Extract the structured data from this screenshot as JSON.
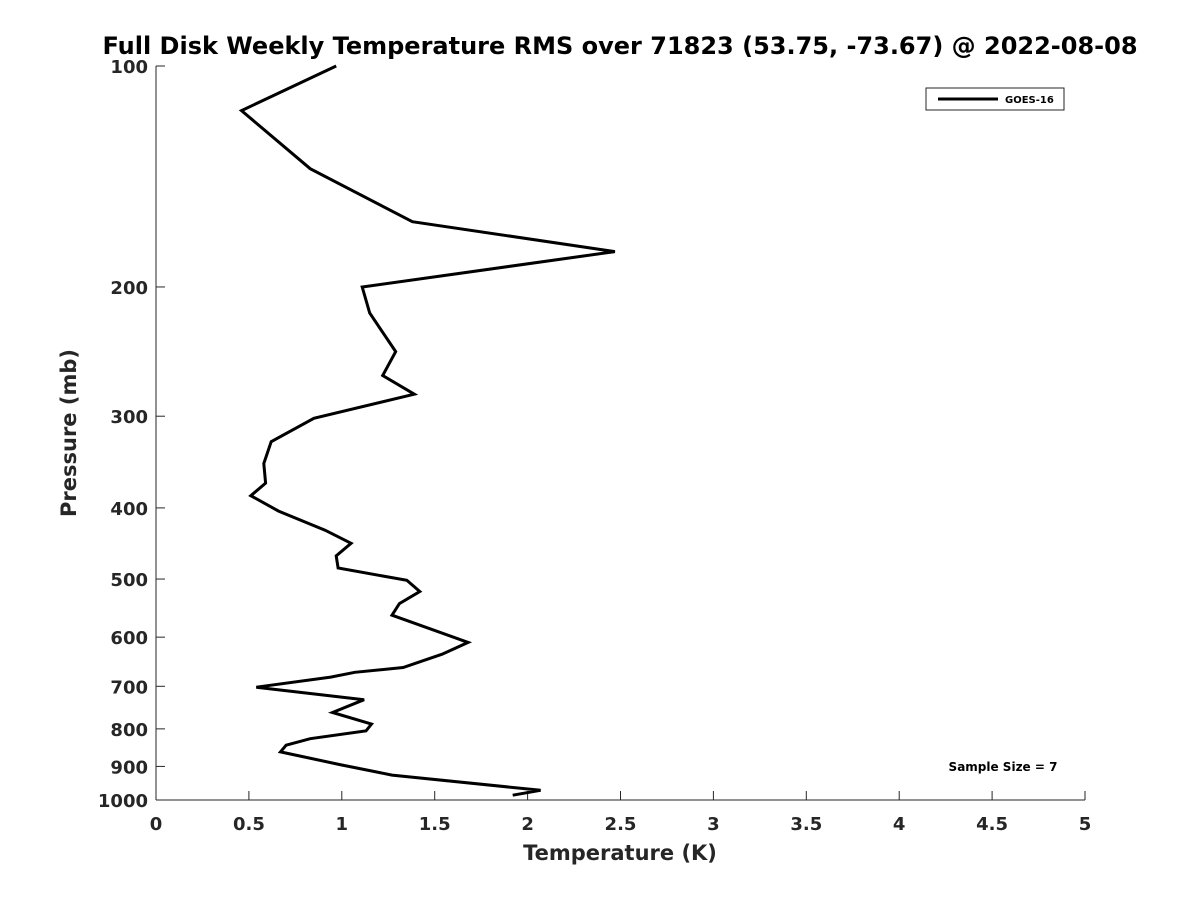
{
  "chart_data": {
    "type": "line",
    "title": "Full Disk Weekly Temperature RMS over 71823 (53.75, -73.67) @ 2022-08-08",
    "xlabel": "Temperature (K)",
    "ylabel": "Pressure (mb)",
    "xlim": [
      0,
      5
    ],
    "ylim": [
      100,
      1000
    ],
    "y_scale": "log",
    "y_reversed": true,
    "x_ticks": [
      "0",
      "0.5",
      "1",
      "1.5",
      "2",
      "2.5",
      "3",
      "3.5",
      "4",
      "4.5",
      "5"
    ],
    "y_ticks": [
      "100",
      "200",
      "300",
      "400",
      "500",
      "600",
      "700",
      "800",
      "900",
      "1000"
    ],
    "grid": false,
    "legend_position": "top-right",
    "annotation": "Sample Size = 7",
    "colors": {
      "line": "#000000",
      "axis": "#262626"
    },
    "series": [
      {
        "name": "GOES-16",
        "x": [
          0.97,
          0.46,
          0.83,
          1.38,
          2.47,
          1.11,
          1.15,
          1.29,
          1.22,
          1.39,
          0.85,
          0.62,
          0.58,
          0.59,
          0.51,
          0.66,
          0.91,
          1.05,
          0.97,
          0.98,
          1.35,
          1.42,
          1.31,
          1.27,
          1.68,
          1.54,
          1.33,
          1.07,
          0.94,
          0.54,
          1.12,
          0.95,
          1.16,
          1.13,
          0.83,
          0.7,
          0.67,
          0.99,
          1.27,
          2.07,
          1.92
        ],
        "y": [
          100,
          115,
          138,
          163,
          179,
          200,
          217,
          245,
          264,
          280,
          302,
          325,
          348,
          370,
          385,
          404,
          429,
          447,
          465,
          483,
          502,
          520,
          540,
          560,
          610,
          633,
          660,
          670,
          680,
          702,
          730,
          760,
          788,
          805,
          825,
          842,
          860,
          895,
          925,
          970,
          985
        ]
      }
    ]
  }
}
